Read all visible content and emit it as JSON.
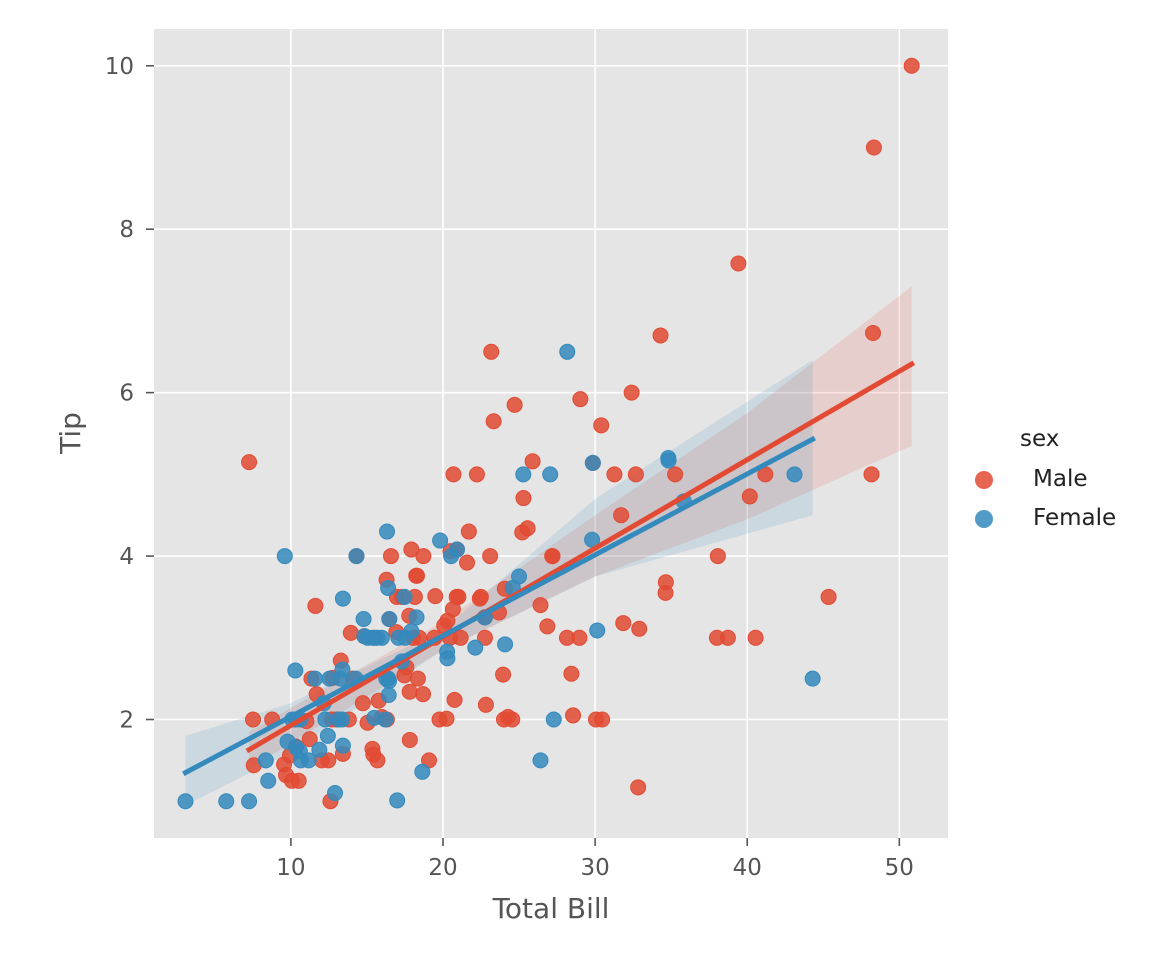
{
  "chart_data": {
    "type": "scatter",
    "xlabel": "Total Bill",
    "ylabel": "Tip",
    "xlim": [
      1.0,
      53.2
    ],
    "ylim": [
      0.55,
      10.45
    ],
    "xticks": [
      10,
      20,
      30,
      40,
      50
    ],
    "yticks": [
      2,
      4,
      6,
      8,
      10
    ],
    "grid": true,
    "legend": {
      "title": "sex",
      "position": "right"
    },
    "series": [
      {
        "name": "Male",
        "color": "#E24A33",
        "fit": {
          "x": [
            7.25,
            50.81
          ],
          "y": [
            1.63,
            6.35
          ]
        },
        "ci": {
          "x": [
            7.25,
            20,
            30,
            40,
            50.81
          ],
          "lower": [
            1.4,
            2.85,
            3.75,
            4.45,
            5.35
          ],
          "upper": [
            1.85,
            3.2,
            4.5,
            5.75,
            7.3
          ]
        },
        "points": [
          [
            7.25,
            5.15
          ],
          [
            7.51,
            2.0
          ],
          [
            7.56,
            1.44
          ],
          [
            8.77,
            2.0
          ],
          [
            9.55,
            1.45
          ],
          [
            9.68,
            1.32
          ],
          [
            9.94,
            1.56
          ],
          [
            10.07,
            1.25
          ],
          [
            10.33,
            1.67
          ],
          [
            10.51,
            1.25
          ],
          [
            11.02,
            1.98
          ],
          [
            11.24,
            1.76
          ],
          [
            11.35,
            2.5
          ],
          [
            11.61,
            3.39
          ],
          [
            11.69,
            2.31
          ],
          [
            12.03,
            1.5
          ],
          [
            12.46,
            1.5
          ],
          [
            12.6,
            1.0
          ],
          [
            12.69,
            2.0
          ],
          [
            12.74,
            2.51
          ],
          [
            13.0,
            2.0
          ],
          [
            13.28,
            2.72
          ],
          [
            13.42,
            1.58
          ],
          [
            13.81,
            2.0
          ],
          [
            13.94,
            3.06
          ],
          [
            14.07,
            2.5
          ],
          [
            14.31,
            4.0
          ],
          [
            14.73,
            2.2
          ],
          [
            14.83,
            3.02
          ],
          [
            15.04,
            1.96
          ],
          [
            15.36,
            1.64
          ],
          [
            15.42,
            1.57
          ],
          [
            15.53,
            3.0
          ],
          [
            15.69,
            1.5
          ],
          [
            15.77,
            2.23
          ],
          [
            15.98,
            2.03
          ],
          [
            16.29,
            3.71
          ],
          [
            16.31,
            2.0
          ],
          [
            16.47,
            3.23
          ],
          [
            16.58,
            4.0
          ],
          [
            16.93,
            3.07
          ],
          [
            16.97,
            3.5
          ],
          [
            17.31,
            3.5
          ],
          [
            17.46,
            2.54
          ],
          [
            17.59,
            2.64
          ],
          [
            17.78,
            3.27
          ],
          [
            17.81,
            2.34
          ],
          [
            17.82,
            1.75
          ],
          [
            17.92,
            4.08
          ],
          [
            18.04,
            3.0
          ],
          [
            18.15,
            3.5
          ],
          [
            18.24,
            3.76
          ],
          [
            18.29,
            3.76
          ],
          [
            18.35,
            2.5
          ],
          [
            18.43,
            3.0
          ],
          [
            18.69,
            2.31
          ],
          [
            18.71,
            4.0
          ],
          [
            19.08,
            1.5
          ],
          [
            19.44,
            3.0
          ],
          [
            19.49,
            3.51
          ],
          [
            19.77,
            2.0
          ],
          [
            20.08,
            3.15
          ],
          [
            20.23,
            2.01
          ],
          [
            20.29,
            3.21
          ],
          [
            20.45,
            3.0
          ],
          [
            20.49,
            4.06
          ],
          [
            20.65,
            3.35
          ],
          [
            20.69,
            5.0
          ],
          [
            20.76,
            2.24
          ],
          [
            20.9,
            3.5
          ],
          [
            20.92,
            4.08
          ],
          [
            21.01,
            3.5
          ],
          [
            21.16,
            3.0
          ],
          [
            21.58,
            3.92
          ],
          [
            21.7,
            4.3
          ],
          [
            22.23,
            5.0
          ],
          [
            22.42,
            3.48
          ],
          [
            22.49,
            3.5
          ],
          [
            22.75,
            3.25
          ],
          [
            22.76,
            3.0
          ],
          [
            22.82,
            2.18
          ],
          [
            23.1,
            4.0
          ],
          [
            23.17,
            6.5
          ],
          [
            23.33,
            5.65
          ],
          [
            23.68,
            3.31
          ],
          [
            23.95,
            2.55
          ],
          [
            24.01,
            2.0
          ],
          [
            24.06,
            3.6
          ],
          [
            24.27,
            2.03
          ],
          [
            24.55,
            2.0
          ],
          [
            24.71,
            5.85
          ],
          [
            25.21,
            4.29
          ],
          [
            25.29,
            4.71
          ],
          [
            25.56,
            4.34
          ],
          [
            25.89,
            5.16
          ],
          [
            26.41,
            3.4
          ],
          [
            26.86,
            3.14
          ],
          [
            27.18,
            4.0
          ],
          [
            27.2,
            4.0
          ],
          [
            28.15,
            3.0
          ],
          [
            28.44,
            2.56
          ],
          [
            28.55,
            2.05
          ],
          [
            28.97,
            3.0
          ],
          [
            29.03,
            5.92
          ],
          [
            29.85,
            5.14
          ],
          [
            30.06,
            2.0
          ],
          [
            30.4,
            5.6
          ],
          [
            30.46,
            2.0
          ],
          [
            31.27,
            5.0
          ],
          [
            31.71,
            4.5
          ],
          [
            31.85,
            3.18
          ],
          [
            32.4,
            6.0
          ],
          [
            32.68,
            5.0
          ],
          [
            32.83,
            1.17
          ],
          [
            32.9,
            3.11
          ],
          [
            34.3,
            6.7
          ],
          [
            34.63,
            3.55
          ],
          [
            34.65,
            3.68
          ],
          [
            35.26,
            5.0
          ],
          [
            38.01,
            3.0
          ],
          [
            38.07,
            4.0
          ],
          [
            38.73,
            3.0
          ],
          [
            39.42,
            7.58
          ],
          [
            40.17,
            4.73
          ],
          [
            40.55,
            3.0
          ],
          [
            41.19,
            5.0
          ],
          [
            45.35,
            3.5
          ],
          [
            48.17,
            5.0
          ],
          [
            48.27,
            6.73
          ],
          [
            48.33,
            9.0
          ],
          [
            50.81,
            10.0
          ]
        ]
      },
      {
        "name": "Female",
        "color": "#348ABD",
        "fit": {
          "x": [
            3.07,
            44.3
          ],
          "y": [
            1.35,
            5.43
          ]
        },
        "ci": {
          "x": [
            3.07,
            10,
            20,
            30,
            44.3
          ],
          "lower": [
            0.95,
            1.6,
            2.85,
            3.75,
            4.5
          ],
          "upper": [
            1.8,
            2.2,
            3.1,
            4.7,
            6.4
          ]
        },
        "points": [
          [
            3.07,
            1.0
          ],
          [
            5.75,
            1.0
          ],
          [
            7.25,
            1.0
          ],
          [
            8.35,
            1.5
          ],
          [
            8.51,
            1.25
          ],
          [
            9.6,
            4.0
          ],
          [
            10.09,
            2.0
          ],
          [
            10.29,
            2.6
          ],
          [
            10.33,
            2.0
          ],
          [
            10.59,
            1.61
          ],
          [
            10.63,
            2.0
          ],
          [
            10.65,
            1.5
          ],
          [
            11.17,
            1.5
          ],
          [
            11.59,
            2.5
          ],
          [
            11.87,
            1.63
          ],
          [
            12.26,
            2.0
          ],
          [
            12.43,
            1.8
          ],
          [
            12.54,
            2.5
          ],
          [
            12.9,
            1.1
          ],
          [
            13.13,
            2.0
          ],
          [
            13.27,
            2.5
          ],
          [
            13.39,
            2.61
          ],
          [
            13.42,
            3.48
          ],
          [
            13.42,
            1.68
          ],
          [
            14.26,
            2.5
          ],
          [
            14.31,
            4.0
          ],
          [
            14.78,
            3.23
          ],
          [
            14.83,
            3.02
          ],
          [
            15.06,
            3.0
          ],
          [
            15.38,
            3.0
          ],
          [
            15.69,
            3.0
          ],
          [
            15.98,
            3.0
          ],
          [
            16.21,
            2.0
          ],
          [
            16.27,
            2.5
          ],
          [
            16.32,
            4.3
          ],
          [
            16.4,
            2.5
          ],
          [
            16.43,
            2.3
          ],
          [
            16.45,
            2.47
          ],
          [
            16.99,
            1.01
          ],
          [
            17.07,
            3.0
          ],
          [
            17.29,
            2.71
          ],
          [
            17.51,
            3.0
          ],
          [
            17.92,
            3.08
          ],
          [
            18.26,
            3.25
          ],
          [
            18.64,
            1.36
          ],
          [
            19.81,
            4.19
          ],
          [
            20.27,
            2.83
          ],
          [
            20.29,
            2.75
          ],
          [
            20.53,
            4.0
          ],
          [
            20.92,
            4.08
          ],
          [
            22.12,
            2.88
          ],
          [
            22.75,
            3.25
          ],
          [
            24.08,
            2.92
          ],
          [
            24.59,
            3.61
          ],
          [
            25.0,
            3.75
          ],
          [
            25.28,
            5.0
          ],
          [
            26.41,
            1.5
          ],
          [
            27.05,
            5.0
          ],
          [
            28.17,
            6.5
          ],
          [
            29.85,
            5.14
          ],
          [
            30.14,
            3.09
          ],
          [
            34.81,
            5.2
          ],
          [
            35.83,
            4.67
          ],
          [
            43.11,
            5.0
          ],
          [
            44.3,
            2.5
          ],
          [
            9.78,
            1.73
          ],
          [
            15.48,
            2.02
          ],
          [
            29.8,
            4.2
          ],
          [
            34.83,
            5.17
          ],
          [
            27.28,
            2.0
          ],
          [
            16.47,
            3.23
          ],
          [
            12.16,
            2.2
          ],
          [
            13.37,
            2.0
          ],
          [
            10.34,
            1.66
          ],
          [
            17.47,
            3.5
          ],
          [
            16.39,
            3.61
          ]
        ]
      }
    ]
  }
}
